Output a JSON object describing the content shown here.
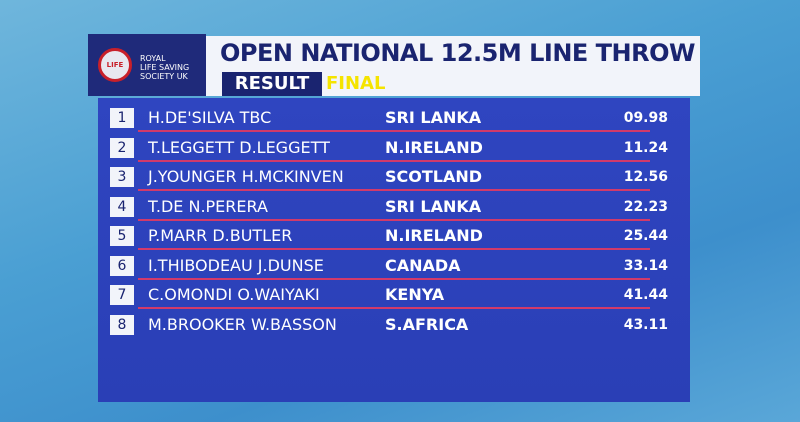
{
  "logo": {
    "badge": "LIFE",
    "lines": [
      "ROYAL",
      "LIFE SAVING",
      "SOCIETY UK"
    ]
  },
  "header": {
    "title": "OPEN NATIONAL 12.5M LINE THROW",
    "result": "RESULT",
    "stage": "FINAL"
  },
  "table": {
    "rows": [
      [
        "1",
        "H.DE'SILVA TBC",
        "SRI LANKA",
        "09.98"
      ],
      [
        "2",
        "T.LEGGETT D.LEGGETT",
        "N.IRELAND",
        "11.24"
      ],
      [
        "3",
        "J.YOUNGER H.MCKINVEN",
        "SCOTLAND",
        "12.56"
      ],
      [
        "4",
        "T.DE N.PERERA",
        "SRI LANKA",
        "22.23"
      ],
      [
        "5",
        "P.MARR D.BUTLER",
        "N.IRELAND",
        "25.44"
      ],
      [
        "6",
        "I.THIBODEAU J.DUNSE",
        "CANADA",
        "33.14"
      ],
      [
        "7",
        "C.OMONDI O.WAIYAKI",
        "KENYA",
        "41.44"
      ],
      [
        "8",
        "M.BROOKER W.BASSON",
        "S.AFRICA",
        "43.11"
      ]
    ]
  }
}
